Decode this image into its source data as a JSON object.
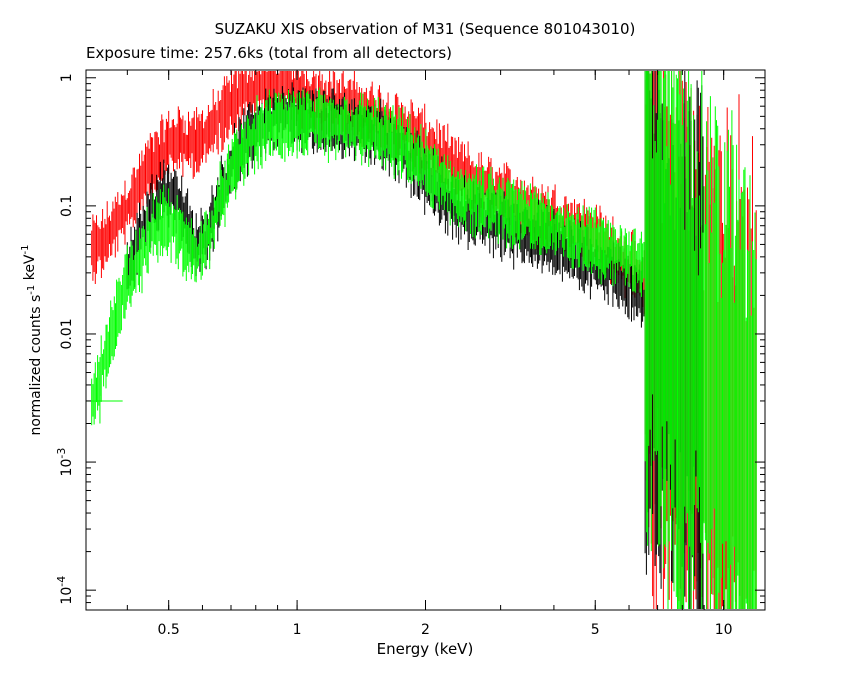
{
  "chart_data": {
    "type": "scatter",
    "title": "SUZAKU XIS observation of M31 (Sequence 801043010)",
    "subtitle": "Exposure time: 257.6ks (total from all detectors)",
    "xlabel": "Energy (keV)",
    "ylabel": "normalized counts s^-1 keV^-1",
    "xscale": "log",
    "yscale": "log",
    "xlim": [
      0.32,
      12.5
    ],
    "ylim": [
      7e-05,
      1.15
    ],
    "grid": false,
    "x_ticks": [
      {
        "value": 0.5,
        "label": "0.5"
      },
      {
        "value": 1,
        "label": "1"
      },
      {
        "value": 2,
        "label": "2"
      },
      {
        "value": 5,
        "label": "5"
      },
      {
        "value": 10,
        "label": "10"
      }
    ],
    "y_ticks": [
      {
        "value": 1,
        "label": "1"
      },
      {
        "value": 0.1,
        "label": "0.1"
      },
      {
        "value": 0.01,
        "label": "0.01"
      },
      {
        "value": 0.001,
        "label": "10^-3"
      },
      {
        "value": 0.0001,
        "label": "10^-4"
      }
    ],
    "series": [
      {
        "color": "#ff0000",
        "points": [
          [
            0.33,
            0.045
          ],
          [
            0.35,
            0.05
          ],
          [
            0.37,
            0.065
          ],
          [
            0.39,
            0.085
          ],
          [
            0.41,
            0.11
          ],
          [
            0.43,
            0.15
          ],
          [
            0.45,
            0.2
          ],
          [
            0.47,
            0.24
          ],
          [
            0.5,
            0.3
          ],
          [
            0.53,
            0.33
          ],
          [
            0.56,
            0.31
          ],
          [
            0.6,
            0.33
          ],
          [
            0.64,
            0.42
          ],
          [
            0.68,
            0.55
          ],
          [
            0.72,
            0.7
          ],
          [
            0.76,
            0.8
          ],
          [
            0.8,
            0.86
          ],
          [
            0.85,
            0.92
          ],
          [
            0.9,
            0.95
          ],
          [
            0.95,
            0.88
          ],
          [
            1.0,
            0.8
          ],
          [
            1.1,
            0.72
          ],
          [
            1.2,
            0.66
          ],
          [
            1.3,
            0.6
          ],
          [
            1.4,
            0.55
          ],
          [
            1.5,
            0.5
          ],
          [
            1.7,
            0.43
          ],
          [
            1.9,
            0.35
          ],
          [
            2.1,
            0.27
          ],
          [
            2.3,
            0.2
          ],
          [
            2.6,
            0.15
          ],
          [
            3.0,
            0.12
          ],
          [
            3.5,
            0.095
          ],
          [
            4.0,
            0.08
          ],
          [
            4.5,
            0.068
          ],
          [
            5.0,
            0.055
          ],
          [
            5.5,
            0.045
          ],
          [
            6.0,
            0.035
          ],
          [
            6.5,
            0.024
          ],
          [
            7.0,
            0.016
          ],
          [
            7.5,
            0.011
          ],
          [
            8.0,
            0.008
          ],
          [
            8.5,
            0.0055
          ],
          [
            9.0,
            0.004
          ],
          [
            9.5,
            0.003
          ],
          [
            10.0,
            0.0025
          ],
          [
            11.0,
            0.0018
          ],
          [
            12.0,
            0.0013
          ]
        ]
      },
      {
        "color": "#000000",
        "points": [
          [
            0.4,
            0.03
          ],
          [
            0.43,
            0.06
          ],
          [
            0.46,
            0.1
          ],
          [
            0.49,
            0.13
          ],
          [
            0.52,
            0.12
          ],
          [
            0.55,
            0.075
          ],
          [
            0.58,
            0.045
          ],
          [
            0.62,
            0.065
          ],
          [
            0.66,
            0.12
          ],
          [
            0.7,
            0.2
          ],
          [
            0.75,
            0.3
          ],
          [
            0.8,
            0.4
          ],
          [
            0.85,
            0.45
          ],
          [
            0.9,
            0.5
          ],
          [
            1.0,
            0.48
          ],
          [
            1.1,
            0.45
          ],
          [
            1.2,
            0.43
          ],
          [
            1.3,
            0.42
          ],
          [
            1.4,
            0.4
          ],
          [
            1.5,
            0.38
          ],
          [
            1.7,
            0.3
          ],
          [
            1.9,
            0.2
          ],
          [
            2.1,
            0.14
          ],
          [
            2.3,
            0.1
          ],
          [
            2.6,
            0.085
          ],
          [
            3.0,
            0.07
          ],
          [
            3.5,
            0.06
          ],
          [
            4.0,
            0.05
          ],
          [
            4.5,
            0.042
          ],
          [
            5.0,
            0.035
          ],
          [
            5.5,
            0.03
          ],
          [
            6.0,
            0.025
          ],
          [
            6.5,
            0.02
          ],
          [
            7.0,
            0.015
          ],
          [
            7.5,
            0.011
          ],
          [
            8.0,
            0.007
          ],
          [
            8.5,
            0.005
          ],
          [
            9.0,
            0.003
          ]
        ]
      },
      {
        "color": "#00ff00",
        "points": [
          [
            0.33,
            0.003
          ],
          [
            0.4,
            0.026
          ],
          [
            0.43,
            0.04
          ],
          [
            0.46,
            0.065
          ],
          [
            0.49,
            0.075
          ],
          [
            0.52,
            0.065
          ],
          [
            0.55,
            0.05
          ],
          [
            0.58,
            0.04
          ],
          [
            0.62,
            0.055
          ],
          [
            0.66,
            0.11
          ],
          [
            0.7,
            0.18
          ],
          [
            0.75,
            0.27
          ],
          [
            0.8,
            0.35
          ],
          [
            0.85,
            0.4
          ],
          [
            0.9,
            0.43
          ],
          [
            1.0,
            0.45
          ],
          [
            1.1,
            0.44
          ],
          [
            1.2,
            0.42
          ],
          [
            1.3,
            0.41
          ],
          [
            1.4,
            0.4
          ],
          [
            1.5,
            0.38
          ],
          [
            1.7,
            0.32
          ],
          [
            1.9,
            0.24
          ],
          [
            2.1,
            0.17
          ],
          [
            2.3,
            0.13
          ],
          [
            2.6,
            0.11
          ],
          [
            3.0,
            0.095
          ],
          [
            3.5,
            0.08
          ],
          [
            4.0,
            0.068
          ],
          [
            4.5,
            0.058
          ],
          [
            5.0,
            0.05
          ],
          [
            5.5,
            0.045
          ],
          [
            6.0,
            0.04
          ],
          [
            6.5,
            0.033
          ],
          [
            7.0,
            0.025
          ],
          [
            7.5,
            0.017
          ],
          [
            8.0,
            0.011
          ],
          [
            8.5,
            0.0075
          ],
          [
            9.0,
            0.005
          ],
          [
            9.5,
            0.0035
          ],
          [
            10.0,
            0.0025
          ],
          [
            11.0,
            0.0015
          ],
          [
            12.0,
            0.001
          ]
        ]
      }
    ]
  }
}
